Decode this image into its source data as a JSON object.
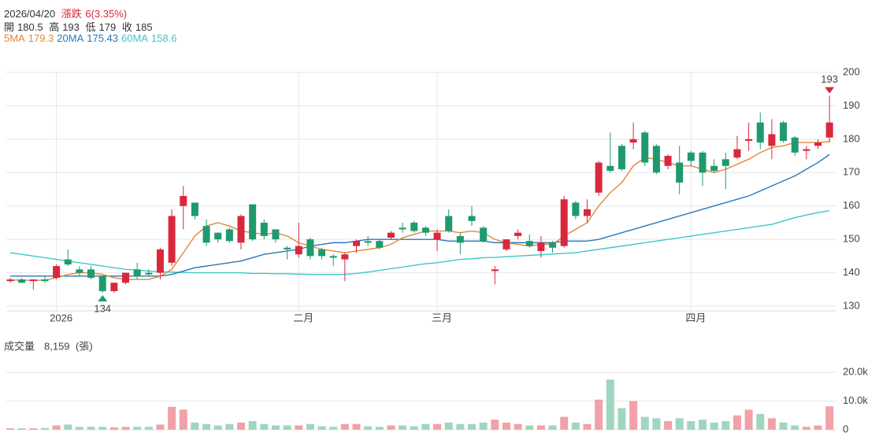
{
  "header": {
    "date": "2026/04/20",
    "change_label": "漲跌",
    "change": "6(3.35%)",
    "open_label": "開",
    "high_label": "高",
    "low_label": "低",
    "close_label": "收"
  },
  "chart_data": {
    "type": "candlestick",
    "categories": [
      null,
      null,
      null,
      null,
      "2026",
      null,
      null,
      null,
      null,
      null,
      null,
      null,
      null,
      null,
      null,
      null,
      null,
      null,
      null,
      null,
      null,
      null,
      null,
      null,
      null,
      "二月",
      null,
      null,
      null,
      null,
      null,
      null,
      null,
      null,
      null,
      null,
      null,
      "三月",
      null,
      null,
      null,
      null,
      null,
      null,
      null,
      null,
      null,
      null,
      null,
      null,
      null,
      null,
      null,
      null,
      null,
      null,
      null,
      null,
      null,
      "四月",
      null,
      null,
      null,
      null,
      null,
      null,
      null,
      null,
      null,
      null,
      null,
      null
    ],
    "open": [
      137.5,
      138,
      137.5,
      138,
      138.5,
      144,
      141,
      141,
      139,
      134.5,
      137,
      141,
      140,
      140,
      143,
      160,
      161,
      154,
      152,
      153,
      149,
      160.5,
      155,
      153,
      147.5,
      145.5,
      150,
      147,
      145,
      144,
      148,
      149.5,
      149.5,
      150.5,
      153.5,
      155,
      153.5,
      150,
      157,
      151,
      157,
      153.5,
      140.5,
      147,
      151,
      149.5,
      146.5,
      149,
      148,
      161,
      157,
      164,
      172,
      178,
      179,
      182,
      178,
      172,
      173,
      176,
      176,
      172,
      174,
      174.5,
      179.5,
      185,
      178,
      185,
      180.5,
      176.5,
      178,
      180.5
    ],
    "high": [
      138.5,
      138.5,
      138,
      139,
      142.5,
      147,
      142,
      142,
      139,
      137,
      140,
      143,
      141,
      147.5,
      159,
      166,
      161,
      156,
      152,
      153.5,
      157.5,
      160.5,
      156,
      153,
      148,
      155,
      150.5,
      147.5,
      145.5,
      146,
      150,
      151,
      150,
      152.5,
      155,
      155.5,
      154,
      153,
      159,
      152,
      160,
      154,
      142,
      150,
      153,
      151.5,
      151,
      149.5,
      163,
      161.5,
      162,
      173.5,
      182,
      178.5,
      185,
      182.5,
      178.5,
      175.5,
      178,
      176.5,
      176.5,
      174,
      176,
      181,
      185,
      188,
      186,
      185.5,
      181,
      178,
      180,
      193
    ],
    "low": [
      137,
      137,
      135,
      137,
      138,
      142,
      139,
      138,
      134,
      134,
      136.5,
      138,
      139,
      138,
      142,
      153,
      156,
      148,
      149,
      149,
      147,
      149.5,
      150,
      149,
      144,
      144.5,
      144,
      144,
      142,
      137.5,
      146,
      148,
      147,
      150,
      152,
      152,
      151,
      146.5,
      152,
      145.5,
      154,
      149,
      136.5,
      146.5,
      150,
      147.5,
      144.5,
      146,
      147.5,
      156,
      155,
      163,
      170,
      170.5,
      177,
      172,
      169.5,
      171,
      163.5,
      172,
      166,
      170,
      165,
      174,
      176.5,
      177,
      174,
      179,
      175,
      174,
      177,
      179
    ],
    "close": [
      138,
      137,
      138,
      137.5,
      142,
      142.5,
      140,
      138.5,
      134.5,
      137,
      140,
      139,
      139.5,
      147,
      157,
      163,
      157,
      149,
      150,
      149.5,
      157,
      150,
      151,
      150,
      147,
      148,
      145,
      145,
      144.5,
      145.5,
      149.5,
      149,
      147.5,
      152,
      153,
      152.5,
      152,
      152,
      152.5,
      149,
      155.5,
      149.5,
      141,
      150,
      152,
      148,
      149,
      147.5,
      162,
      157,
      159,
      173,
      170.5,
      171,
      180,
      173,
      170,
      175,
      167,
      173.5,
      170,
      170.5,
      172,
      177,
      180,
      179,
      181.5,
      179.5,
      176,
      177,
      179,
      185
    ],
    "up_color": "#d9283c",
    "down_color": "#1f9a6e",
    "ma_series": [
      {
        "name": "5MA",
        "color": "#e0893a",
        "values": [
          137.8,
          137.8,
          137.7,
          137.8,
          138.5,
          139.5,
          140,
          140,
          139.5,
          138.5,
          138,
          138,
          138,
          139,
          141,
          146,
          151,
          154,
          155,
          154,
          152.5,
          152,
          151.5,
          152,
          151,
          149,
          148,
          147,
          146.5,
          146,
          146.5,
          147,
          147.5,
          148.5,
          150.5,
          151.5,
          152.5,
          152.5,
          152.5,
          152,
          152.5,
          152,
          150,
          149,
          148.5,
          148,
          148.5,
          148.5,
          151,
          153,
          155,
          160,
          164,
          167,
          172,
          174.5,
          174,
          173,
          172,
          172,
          171,
          170,
          171,
          172.5,
          174,
          176,
          177.5,
          178,
          179,
          179,
          179,
          179.3
        ]
      },
      {
        "name": "20MA",
        "color": "#2a78b8",
        "values": [
          139,
          139,
          139,
          139,
          139,
          139,
          139,
          139,
          139,
          139,
          139,
          139,
          139,
          139,
          139.5,
          140.5,
          141.5,
          142,
          142.5,
          143,
          143.5,
          144.5,
          145.5,
          146,
          146.5,
          147,
          148,
          148.5,
          149,
          149,
          149.5,
          150,
          150,
          150,
          150,
          150,
          150,
          150,
          149.5,
          149.5,
          149.5,
          149.5,
          149,
          149,
          149,
          149,
          149,
          149,
          149.5,
          149.5,
          149.5,
          150,
          151,
          152,
          153,
          154,
          155,
          156,
          157,
          158,
          159,
          160,
          161,
          162,
          163,
          164.5,
          166,
          167.5,
          169,
          171,
          173,
          175.43
        ]
      },
      {
        "name": "60MA",
        "color": "#3cc8c8",
        "values": [
          146,
          145.5,
          145,
          144.5,
          144,
          143.5,
          143,
          142.5,
          142,
          141.5,
          141,
          140.8,
          140.5,
          140.3,
          140.2,
          140.1,
          140,
          140,
          140,
          140,
          140,
          139.8,
          139.8,
          139.7,
          139.7,
          139.6,
          139.5,
          139.5,
          139.5,
          139.5,
          139.8,
          140.2,
          140.7,
          141.2,
          141.7,
          142.2,
          142.7,
          143,
          143.5,
          144,
          144.2,
          144.5,
          144.6,
          144.8,
          145,
          145.2,
          145.4,
          145.6,
          145.8,
          146,
          146.5,
          147,
          147.5,
          148,
          148.5,
          149,
          149.5,
          150,
          150.5,
          151,
          151.5,
          152,
          152.5,
          153,
          153.5,
          154,
          154.5,
          155.5,
          156.5,
          157.3,
          158,
          158.6
        ]
      }
    ],
    "ylim": [
      130,
      200
    ],
    "yticks": [
      130,
      140,
      150,
      160,
      170,
      180,
      190,
      200
    ],
    "grid": true
  },
  "volume_chart": {
    "type": "bar",
    "title": "成交量",
    "unit": "(張)",
    "values": [
      500,
      500,
      500,
      600,
      1500,
      1800,
      1000,
      1000,
      1000,
      800,
      1000,
      1000,
      1000,
      1800,
      8000,
      7000,
      2500,
      2000,
      1500,
      2000,
      2500,
      3000,
      2000,
      1500,
      1500,
      1500,
      2000,
      1200,
      1000,
      2000,
      2000,
      1200,
      1000,
      1500,
      1500,
      1200,
      2000,
      2000,
      2500,
      2000,
      2000,
      2500,
      3500,
      2500,
      2000,
      1500,
      1500,
      1500,
      4500,
      2500,
      2000,
      10500,
      17500,
      7500,
      10000,
      4500,
      4000,
      3000,
      4000,
      3000,
      3500,
      2500,
      3000,
      5000,
      7000,
      5500,
      4000,
      2500,
      1500,
      1000,
      1500,
      8159
    ],
    "value_labels": [
      null,
      null,
      null,
      null,
      null,
      null,
      null,
      null,
      null,
      null,
      null,
      null,
      null,
      null,
      null,
      null,
      null,
      null,
      null,
      null,
      null,
      null,
      null,
      null,
      null,
      null,
      null,
      null,
      null,
      null,
      null,
      null,
      null,
      null,
      null,
      null,
      null,
      null,
      null,
      null,
      null,
      null,
      null,
      null,
      null,
      null,
      null,
      null,
      null,
      null,
      null,
      null,
      null,
      null,
      null,
      null,
      null,
      null,
      null,
      null,
      null,
      null,
      null,
      null,
      null,
      null,
      null,
      null,
      null,
      null,
      null,
      "8,159"
    ],
    "up_color": "#f2a1a8",
    "down_color": "#9fd6c0",
    "ylim": [
      0,
      25000
    ],
    "yticks": [
      0,
      {
        "value": 10000,
        "label": "10.0k"
      },
      {
        "value": 20000,
        "label": "20.0k"
      }
    ],
    "grid": true
  }
}
